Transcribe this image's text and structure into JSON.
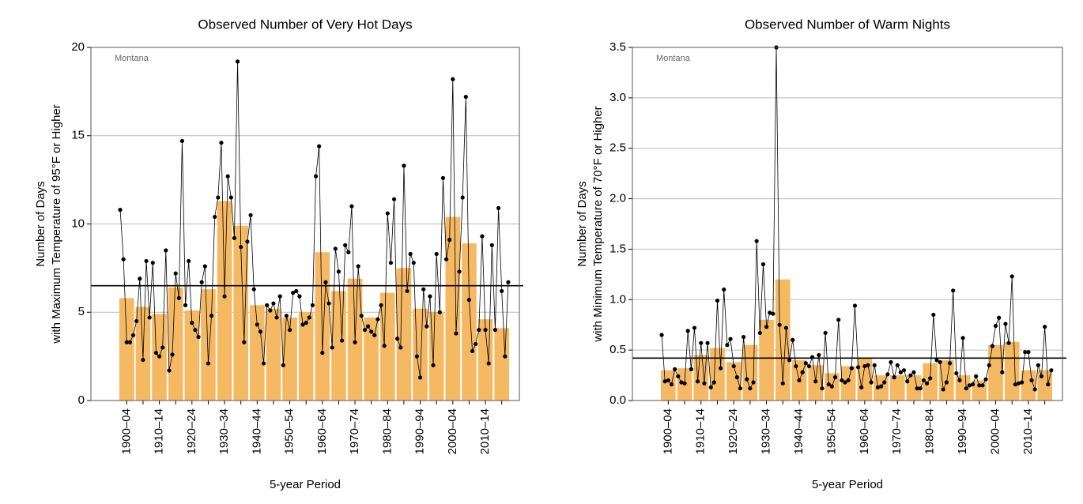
{
  "chart_data": [
    {
      "type": "bar-line",
      "title": "Observed Number of Very Hot Days",
      "annotation": "Montana",
      "y_label": [
        "Number of Days",
        "with Maximum Temperature of 95°F or Higher"
      ],
      "x_label": "5-year Period",
      "categories": [
        "1900–04",
        null,
        "1910–14",
        null,
        "1920–24",
        null,
        "1930–34",
        null,
        "1940–44",
        null,
        "1950–54",
        null,
        "1960–64",
        null,
        "1970–74",
        null,
        "1980–84",
        null,
        "1990–94",
        null,
        "2000–04",
        null,
        "2010–14",
        null
      ],
      "bar_values": [
        5.8,
        5.3,
        4.9,
        6.4,
        5.1,
        6.3,
        11.3,
        9.9,
        5.4,
        5.2,
        4.7,
        5.0,
        8.4,
        6.2,
        6.9,
        4.7,
        6.1,
        7.5,
        5.2,
        5.0,
        10.4,
        8.9,
        4.6,
        4.1
      ],
      "line_values": [
        10.8,
        8.0,
        3.3,
        3.3,
        3.7,
        4.5,
        6.9,
        2.3,
        7.9,
        4.7,
        7.8,
        2.7,
        2.5,
        3.0,
        8.5,
        1.7,
        2.6,
        7.2,
        5.8,
        14.7,
        5.4,
        7.9,
        4.4,
        4.0,
        3.6,
        6.7,
        7.6,
        2.1,
        4.8,
        10.4,
        11.5,
        14.6,
        5.9,
        12.7,
        11.5,
        9.2,
        19.2,
        8.7,
        3.3,
        9.0,
        10.5,
        6.3,
        4.3,
        3.9,
        2.1,
        5.4,
        5.1,
        5.5,
        4.7,
        5.9,
        2.0,
        4.8,
        4.0,
        6.1,
        6.2,
        5.9,
        4.3,
        4.4,
        4.7,
        5.4,
        12.7,
        14.4,
        2.7,
        6.7,
        5.5,
        3.0,
        8.6,
        7.3,
        3.4,
        8.8,
        8.4,
        11.0,
        3.3,
        7.6,
        4.8,
        4.0,
        4.2,
        3.9,
        3.7,
        4.6,
        5.4,
        3.1,
        10.6,
        7.8,
        11.4,
        3.5,
        3.0,
        13.3,
        6.2,
        8.3,
        7.8,
        2.5,
        1.3,
        6.3,
        4.2,
        5.9,
        2.0,
        8.3,
        5.0,
        12.6,
        8.0,
        9.1,
        18.2,
        3.8,
        7.3,
        11.5,
        17.2,
        5.7,
        2.8,
        3.2,
        4.0,
        9.3,
        4.0,
        2.1,
        8.8,
        4.0,
        10.9,
        6.2,
        2.5,
        6.7
      ],
      "average": 6.5,
      "bar_color": "#f5b964",
      "line_color": "#000000",
      "ylim": [
        0,
        20
      ],
      "yticks": [
        0,
        5,
        10,
        15,
        20
      ],
      "grid": true
    },
    {
      "type": "bar-line",
      "title": "Observed Number of Warm Nights",
      "annotation": "Montana",
      "y_label": [
        "Number of Days",
        "with Minimum Temperature of 70°F or Higher"
      ],
      "x_label": "5-year Period",
      "categories": [
        "1900–04",
        null,
        "1910–14",
        null,
        "1920–24",
        null,
        "1930–34",
        null,
        "1940–44",
        null,
        "1950–54",
        null,
        "1960–64",
        null,
        "1970–74",
        null,
        "1980–84",
        null,
        "1990–94",
        null,
        "2000–04",
        null,
        "2010–14",
        null
      ],
      "bar_values": [
        0.3,
        0.32,
        0.45,
        0.52,
        0.38,
        0.55,
        0.8,
        1.2,
        0.4,
        0.35,
        0.27,
        0.34,
        0.42,
        0.25,
        0.25,
        0.25,
        0.37,
        0.4,
        0.25,
        0.2,
        0.55,
        0.58,
        0.3,
        0.3
      ],
      "line_values": [
        0.65,
        0.19,
        0.2,
        0.16,
        0.31,
        0.24,
        0.18,
        0.17,
        0.69,
        0.31,
        0.72,
        0.19,
        0.57,
        0.17,
        0.57,
        0.13,
        0.18,
        0.99,
        0.32,
        1.1,
        0.55,
        0.61,
        0.34,
        0.23,
        0.12,
        0.63,
        0.21,
        0.12,
        0.18,
        1.58,
        0.67,
        1.35,
        0.73,
        0.87,
        0.86,
        3.5,
        0.75,
        0.17,
        0.72,
        0.4,
        0.6,
        0.34,
        0.2,
        0.28,
        0.37,
        0.34,
        0.43,
        0.19,
        0.45,
        0.12,
        0.67,
        0.16,
        0.14,
        0.23,
        0.8,
        0.2,
        0.18,
        0.2,
        0.32,
        0.94,
        0.33,
        0.13,
        0.34,
        0.35,
        0.18,
        0.35,
        0.13,
        0.14,
        0.18,
        0.26,
        0.38,
        0.23,
        0.35,
        0.28,
        0.3,
        0.19,
        0.25,
        0.28,
        0.12,
        0.12,
        0.2,
        0.17,
        0.22,
        0.85,
        0.4,
        0.38,
        0.11,
        0.18,
        0.37,
        1.09,
        0.27,
        0.2,
        0.62,
        0.12,
        0.15,
        0.16,
        0.24,
        0.15,
        0.15,
        0.21,
        0.35,
        0.54,
        0.74,
        0.82,
        0.28,
        0.76,
        0.57,
        1.23,
        0.16,
        0.17,
        0.18,
        0.48,
        0.48,
        0.2,
        0.11,
        0.35,
        0.24,
        0.73,
        0.16,
        0.3
      ],
      "average": 0.42,
      "bar_color": "#f5b964",
      "line_color": "#000000",
      "ylim": [
        0,
        3.5
      ],
      "yticks": [
        {
          "value": 0,
          "label": "0.0"
        },
        0.5,
        {
          "value": 1,
          "label": "1.0"
        },
        1.5,
        {
          "value": 2,
          "label": "2.0"
        },
        2.5,
        {
          "value": 3,
          "label": "3.0"
        },
        3.5
      ],
      "grid": true
    }
  ]
}
